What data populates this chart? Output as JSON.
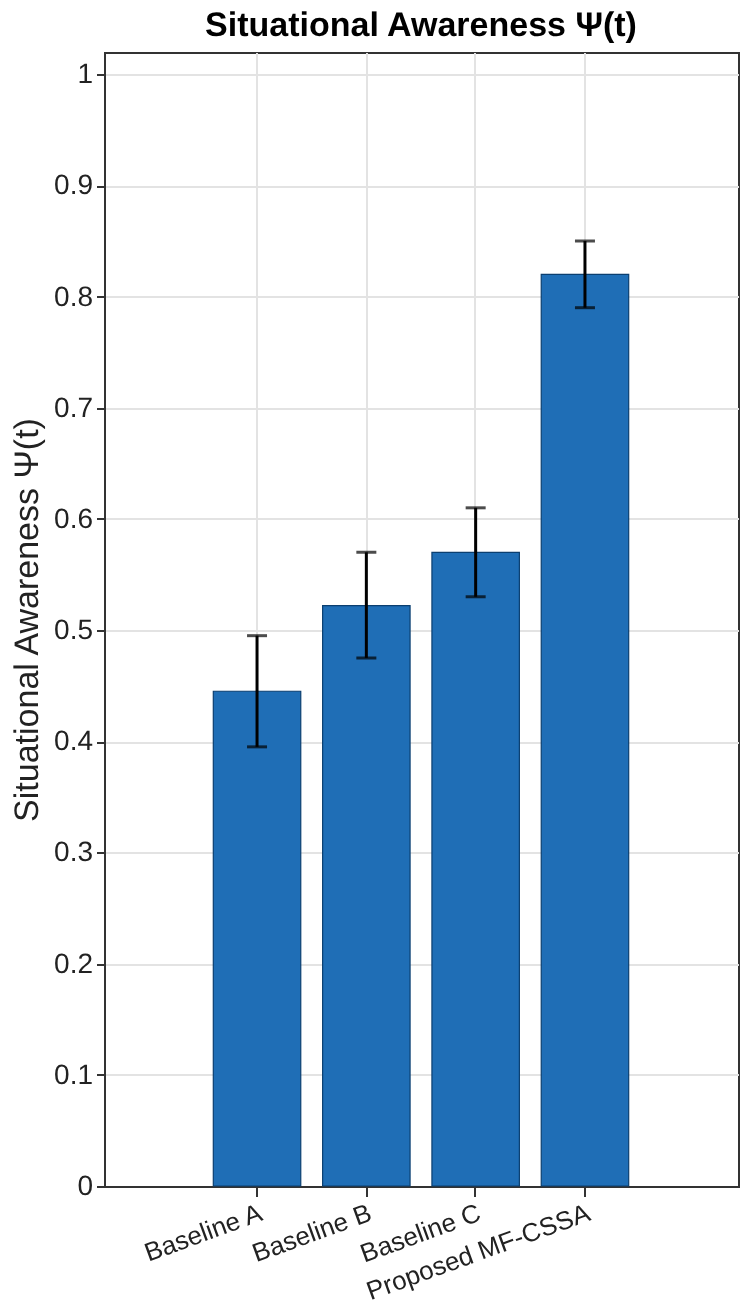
{
  "chart_data": {
    "type": "bar",
    "title": "Situational Awareness Ψ(t)",
    "ylabel": "Situational Awareness Ψ(t)",
    "categories": [
      "Baseline A",
      "Baseline B",
      "Baseline C",
      "Proposed MF-CSSA"
    ],
    "values": [
      0.445,
      0.522,
      0.57,
      0.82
    ],
    "color": "#1f6eb6",
    "errors": [
      [
        0.395,
        0.495
      ],
      [
        0.475,
        0.57
      ],
      [
        0.53,
        0.61
      ],
      [
        0.79,
        0.85
      ]
    ],
    "ylim": [
      0,
      1.02
    ],
    "yticks": [
      0,
      0.1,
      0.2,
      0.3,
      0.4,
      0.5,
      0.6,
      0.7,
      0.8,
      0.9,
      1
    ],
    "grid": true
  }
}
